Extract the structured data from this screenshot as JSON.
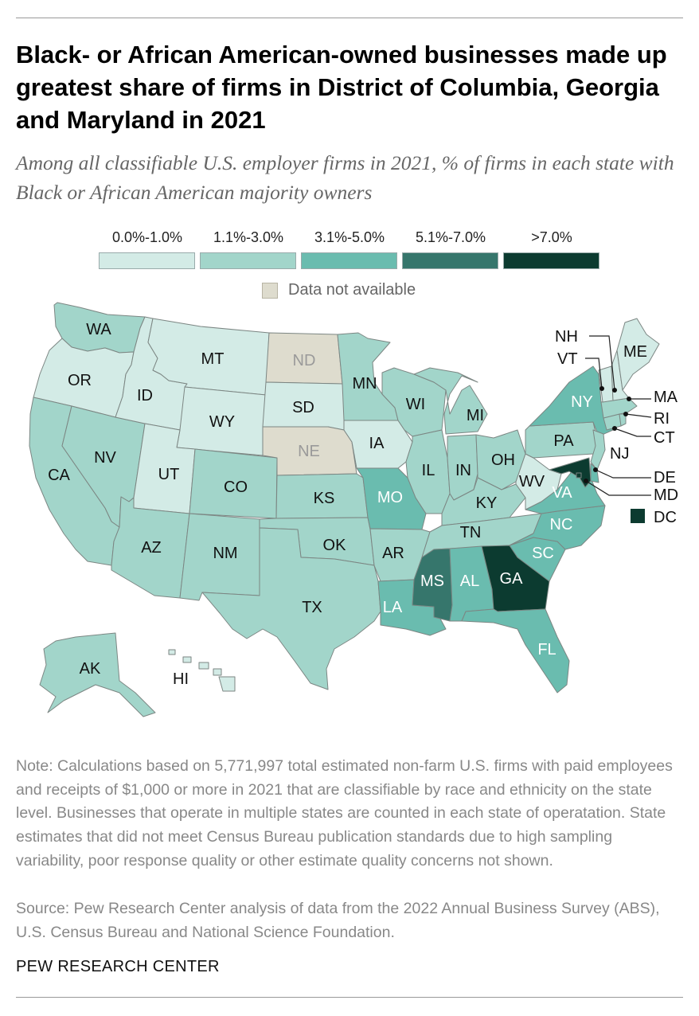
{
  "title": "Black- or African American-owned businesses made up greatest share of firms in District of Columbia, Georgia and Maryland in 2021",
  "subtitle": "Among all classifiable U.S. employer firms in 2021, % of firms in each state with Black or African American majority owners",
  "colors": {
    "bin1": "#d3ebe6",
    "bin2": "#a2d5ca",
    "bin3": "#6abcaf",
    "bin4": "#36766c",
    "bin5": "#0c3b30",
    "na": "#dedcce",
    "border": "#7c8683"
  },
  "legend": {
    "bins": [
      {
        "label": "0.0%-1.0%",
        "color": "#d3ebe6"
      },
      {
        "label": "1.1%-3.0%",
        "color": "#a2d5ca"
      },
      {
        "label": "3.1%-5.0%",
        "color": "#6abcaf"
      },
      {
        "label": "5.1%-7.0%",
        "color": "#36766c"
      },
      {
        "label": ">7.0%",
        "color": "#0c3b30"
      }
    ],
    "na_label": "Data not available"
  },
  "map": {
    "states": {
      "WA": {
        "bin": "1.1%-3.0%"
      },
      "OR": {
        "bin": "0.0%-1.0%"
      },
      "CA": {
        "bin": "1.1%-3.0%"
      },
      "NV": {
        "bin": "1.1%-3.0%"
      },
      "ID": {
        "bin": "0.0%-1.0%"
      },
      "MT": {
        "bin": "0.0%-1.0%"
      },
      "WY": {
        "bin": "0.0%-1.0%"
      },
      "UT": {
        "bin": "0.0%-1.0%"
      },
      "AZ": {
        "bin": "1.1%-3.0%"
      },
      "CO": {
        "bin": "1.1%-3.0%"
      },
      "NM": {
        "bin": "1.1%-3.0%"
      },
      "ND": {
        "bin": "Data not available"
      },
      "SD": {
        "bin": "0.0%-1.0%"
      },
      "NE": {
        "bin": "Data not available"
      },
      "KS": {
        "bin": "1.1%-3.0%"
      },
      "OK": {
        "bin": "1.1%-3.0%"
      },
      "TX": {
        "bin": "1.1%-3.0%"
      },
      "MN": {
        "bin": "1.1%-3.0%"
      },
      "IA": {
        "bin": "0.0%-1.0%"
      },
      "MO": {
        "bin": "3.1%-5.0%"
      },
      "AR": {
        "bin": "1.1%-3.0%"
      },
      "LA": {
        "bin": "3.1%-5.0%"
      },
      "WI": {
        "bin": "1.1%-3.0%"
      },
      "IL": {
        "bin": "1.1%-3.0%"
      },
      "MI": {
        "bin": "1.1%-3.0%"
      },
      "IN": {
        "bin": "1.1%-3.0%"
      },
      "OH": {
        "bin": "1.1%-3.0%"
      },
      "KY": {
        "bin": "1.1%-3.0%"
      },
      "TN": {
        "bin": "1.1%-3.0%"
      },
      "MS": {
        "bin": "5.1%-7.0%"
      },
      "AL": {
        "bin": "3.1%-5.0%"
      },
      "GA": {
        "bin": ">7.0%"
      },
      "FL": {
        "bin": "3.1%-5.0%"
      },
      "SC": {
        "bin": "3.1%-5.0%"
      },
      "NC": {
        "bin": "3.1%-5.0%"
      },
      "VA": {
        "bin": "3.1%-5.0%"
      },
      "WV": {
        "bin": "0.0%-1.0%"
      },
      "PA": {
        "bin": "1.1%-3.0%"
      },
      "NY": {
        "bin": "3.1%-5.0%"
      },
      "NJ": {
        "bin": "1.1%-3.0%"
      },
      "DE": {
        "bin": "3.1%-5.0%"
      },
      "MD": {
        "bin": ">7.0%"
      },
      "DC": {
        "bin": ">7.0%"
      },
      "CT": {
        "bin": "1.1%-3.0%"
      },
      "RI": {
        "bin": "1.1%-3.0%"
      },
      "MA": {
        "bin": "1.1%-3.0%"
      },
      "VT": {
        "bin": "0.0%-1.0%"
      },
      "NH": {
        "bin": "0.0%-1.0%"
      },
      "ME": {
        "bin": "0.0%-1.0%"
      },
      "AK": {
        "bin": "1.1%-3.0%"
      },
      "HI": {
        "bin": "0.0%-1.0%"
      }
    }
  },
  "note": "Note: Calculations based on 5,771,997 total estimated non-farm U.S. firms with paid employees and receipts of $1,000 or more in 2021 that are classifiable by race and ethnicity on the state level. Businesses that operate in multiple states are counted in each state of operatation. State estimates that did not meet Census Bureau publication standards due to high sampling variability, poor response quality or other estimate quality concerns not shown.",
  "source": "Source: Pew Research Center analysis of data from the 2022 Annual Business Survey (ABS), U.S. Census Bureau and National Science Foundation.",
  "brand": "PEW RESEARCH CENTER"
}
